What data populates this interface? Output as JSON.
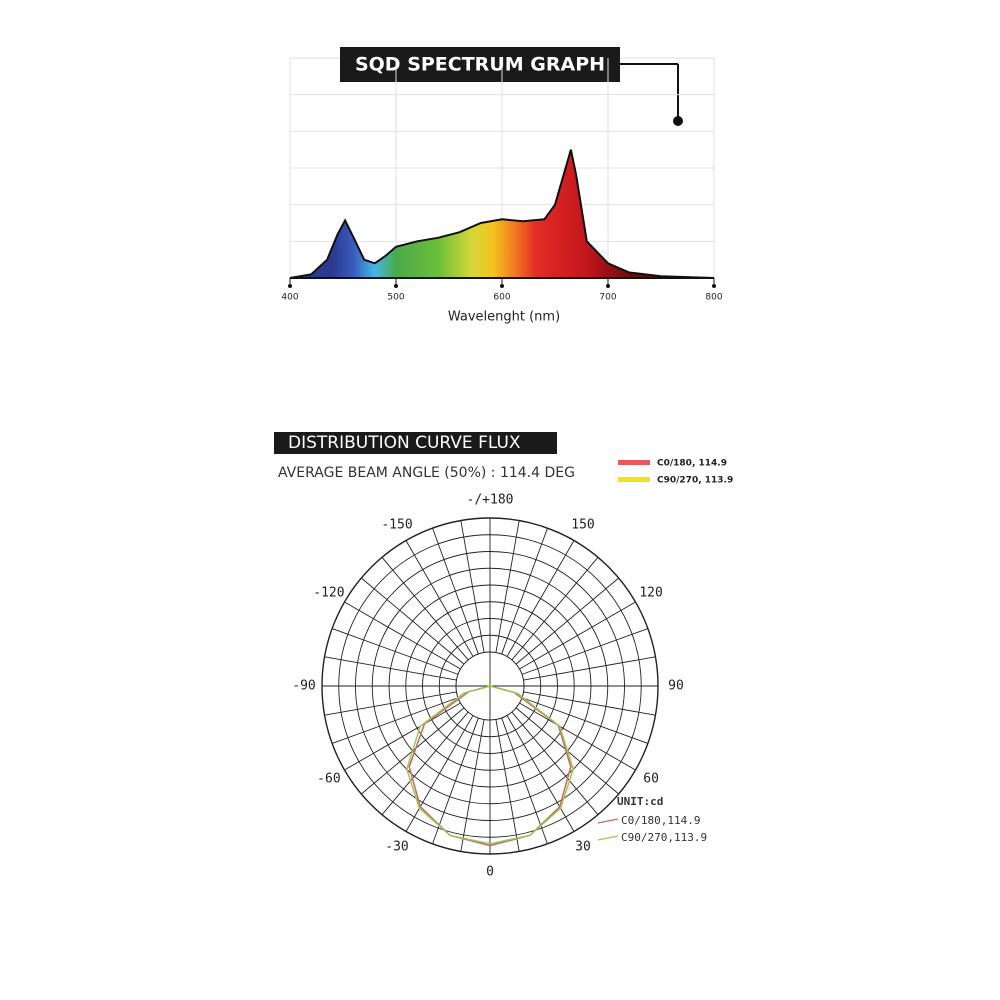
{
  "chart_data": [
    {
      "type": "area",
      "title": "SQD SPECTRUM GRAPH",
      "xlabel": "Wavelenght (nm)",
      "x": [
        400,
        420,
        435,
        445,
        452,
        460,
        470,
        480,
        490,
        500,
        520,
        540,
        560,
        580,
        600,
        620,
        640,
        650,
        658,
        665,
        670,
        680,
        700,
        720,
        750,
        800
      ],
      "values": [
        0,
        0.1,
        0.5,
        1.2,
        1.57,
        1.1,
        0.5,
        0.4,
        0.6,
        0.85,
        1.0,
        1.1,
        1.25,
        1.5,
        1.6,
        1.55,
        1.6,
        2.0,
        2.8,
        3.5,
        2.8,
        1.0,
        0.4,
        0.15,
        0.05,
        0
      ],
      "xlim": [
        400,
        800
      ],
      "xticks": [
        400,
        500,
        600,
        700,
        800
      ],
      "ylim": [
        0,
        6
      ],
      "grid": true,
      "color": "spectrum"
    },
    {
      "type": "polar",
      "title": "DISTRIBUTION CURVE FLUX",
      "subtitle": "AVERAGE BEAM ANGLE  (50%) : 114.4 DEG",
      "unit_label": "UNIT:cd",
      "legend": "top-right",
      "angle_ticks": [
        {
          "value": 180,
          "label": "-/+180"
        },
        -150,
        150,
        -120,
        120,
        -90,
        90,
        -60,
        60,
        -30,
        30,
        0
      ],
      "rlim": [
        0,
        1
      ],
      "theta": [
        -90,
        -75,
        -60,
        -45,
        -30,
        -15,
        0,
        15,
        30,
        45,
        60,
        75,
        90
      ],
      "series": [
        {
          "name": "C0/180, 114.9",
          "label_2": "C0/180,114.9",
          "color": "#c9685e",
          "legend_color": "#e8585c",
          "values": [
            0,
            0.13,
            0.45,
            0.68,
            0.83,
            0.92,
            0.95,
            0.92,
            0.83,
            0.68,
            0.47,
            0.15,
            0
          ]
        },
        {
          "name": "C90/270, 113.9",
          "label_2": "C90/270,113.9",
          "color": "#9cc65a",
          "legend_color": "#f2e21a",
          "values": [
            0,
            0.16,
            0.48,
            0.7,
            0.84,
            0.92,
            0.94,
            0.92,
            0.84,
            0.7,
            0.48,
            0.17,
            0
          ]
        }
      ]
    }
  ]
}
